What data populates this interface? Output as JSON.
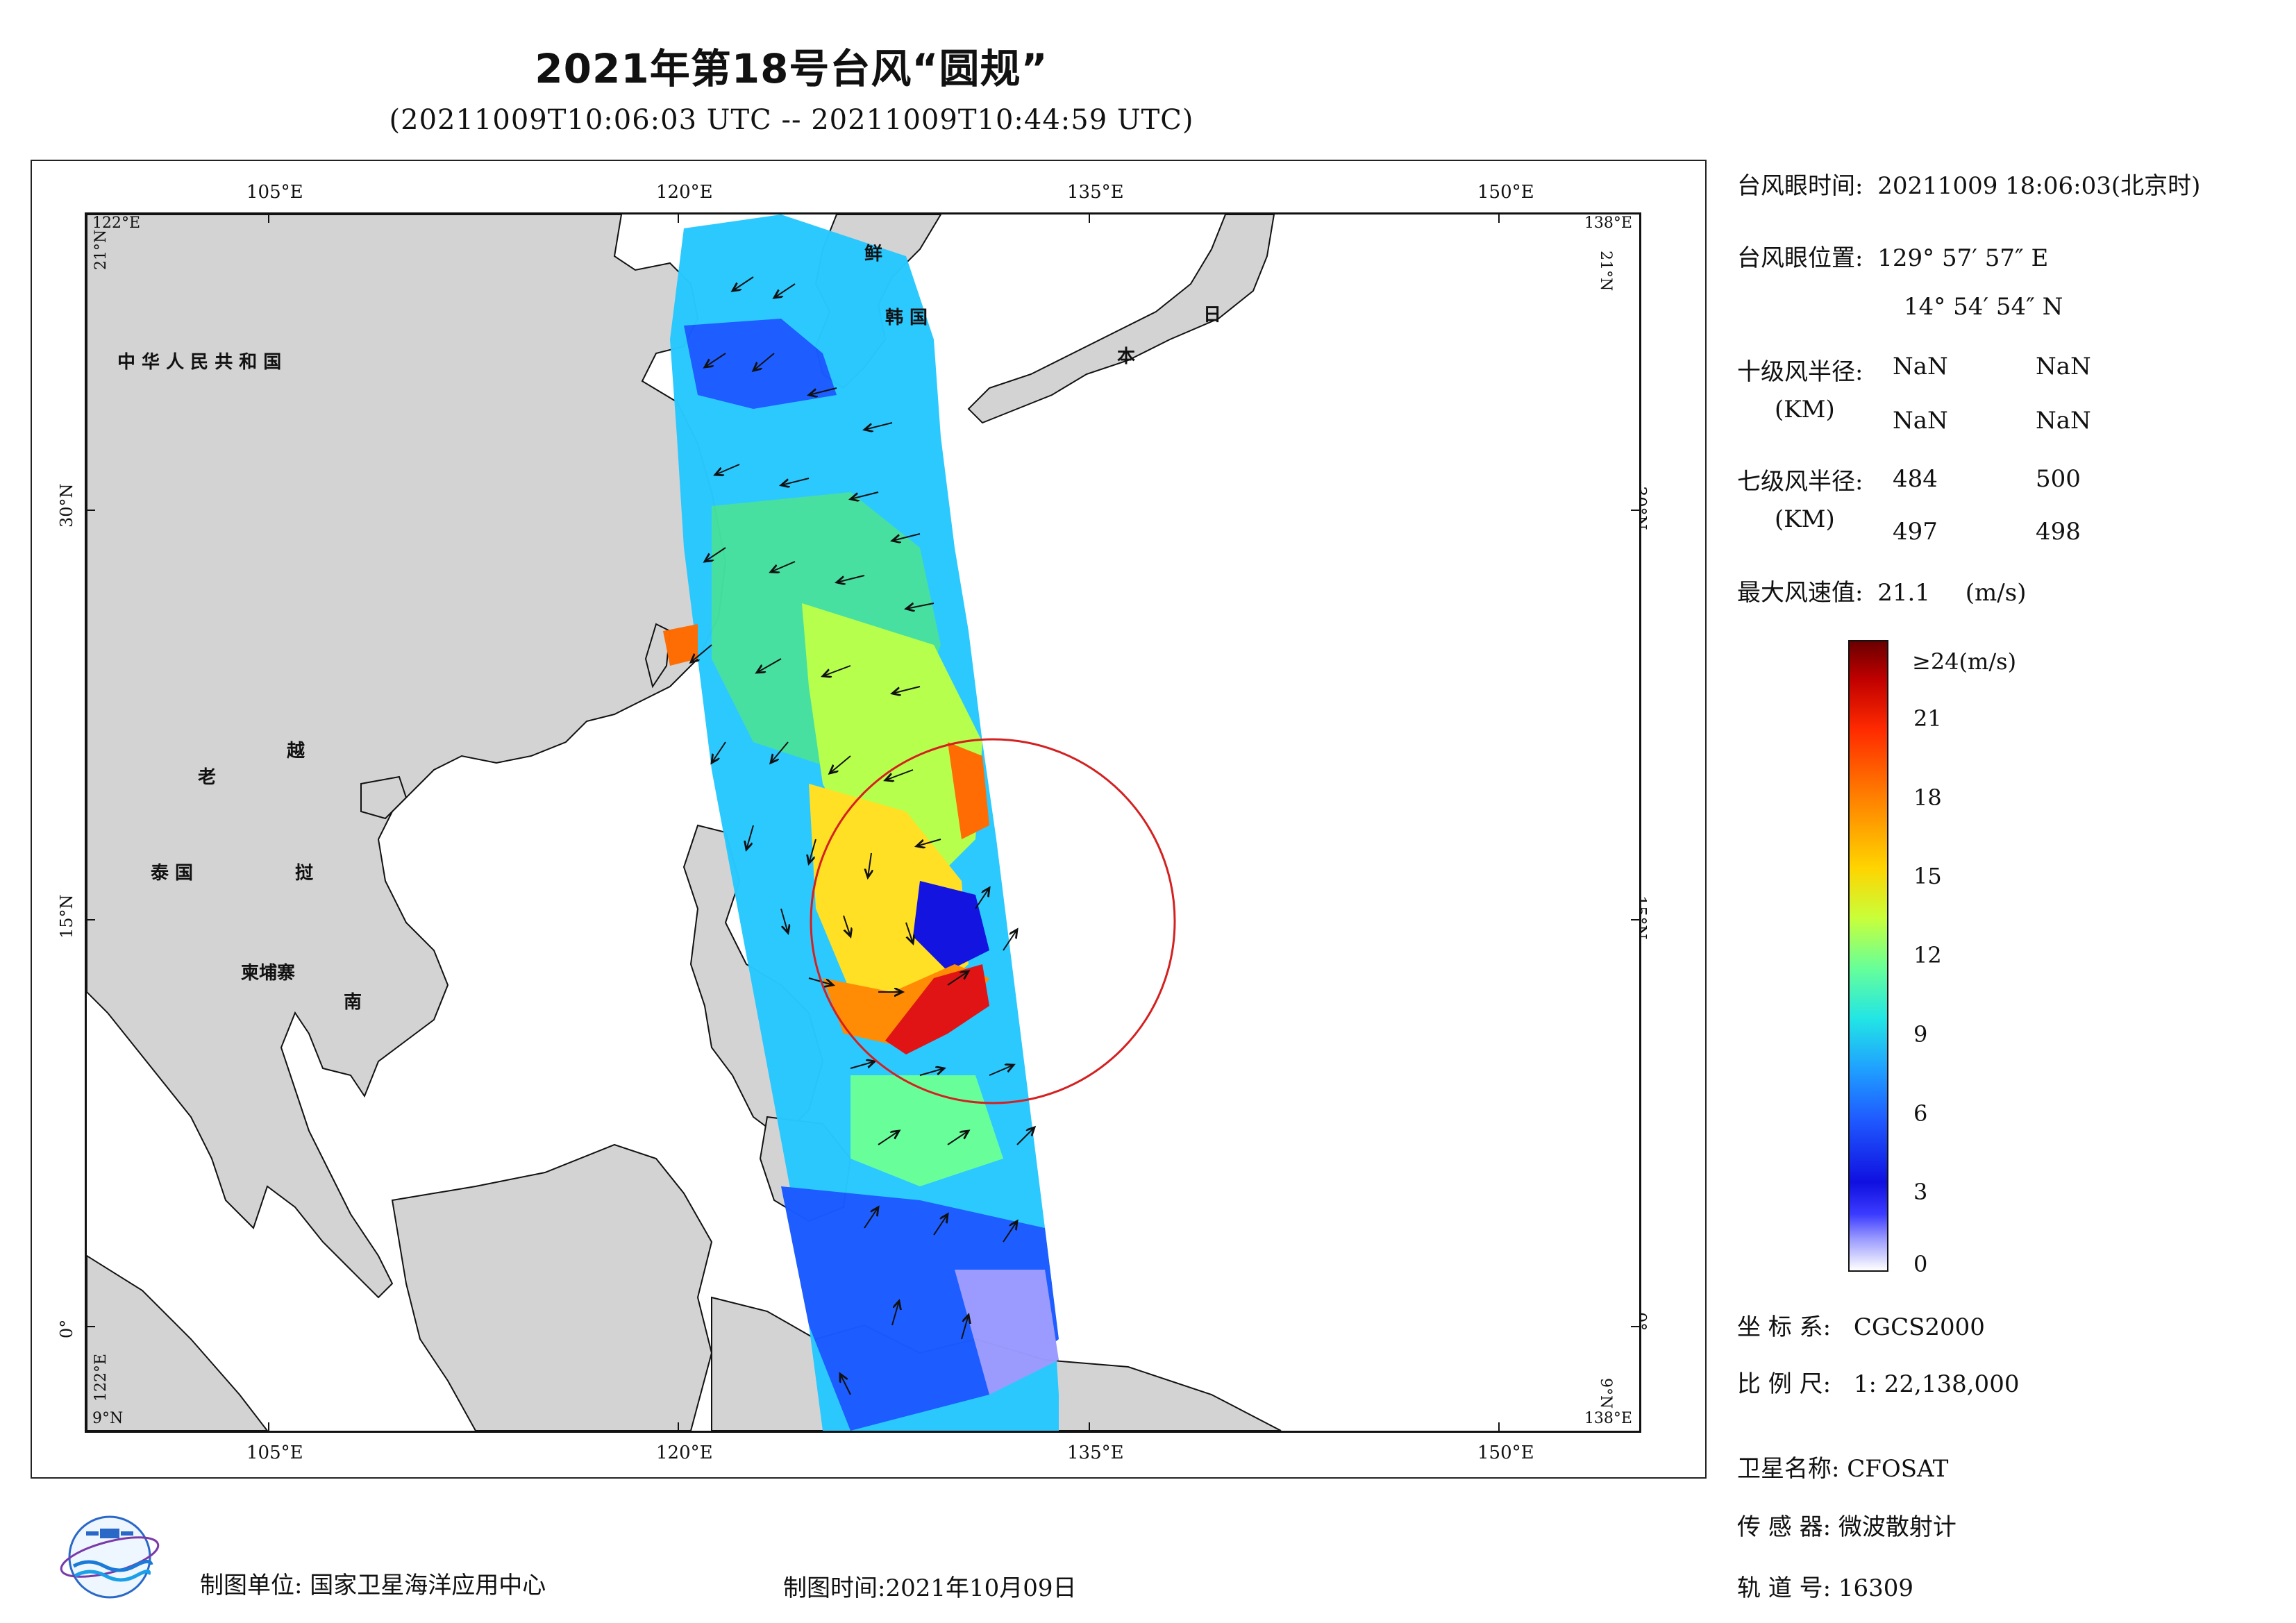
{
  "title": "2021年第18号台风“圆规”",
  "subtitle": "(20211009T10:06:03 UTC -- 20211009T10:44:59 UTC)",
  "map": {
    "top_ticks": [
      "105°E",
      "120°E",
      "135°E",
      "150°E"
    ],
    "bottom_ticks": [
      "105°E",
      "120°E",
      "135°E",
      "150°E"
    ],
    "left_ticks": [
      "30°N",
      "15°N",
      "0°"
    ],
    "right_ticks": [
      "30°N",
      "15°N",
      "0°"
    ],
    "corner_tl_lon": "122°E",
    "corner_tl_lat": "21°N",
    "corner_tr_lon": "138°E",
    "corner_tr_lat": "21°N",
    "corner_bl_lon": "122°E",
    "corner_bl_lat": "9°N",
    "corner_br_lon": "138°E",
    "corner_br_lat": "9°N",
    "country_labels": {
      "china": "中 华 人 民 共 和 国",
      "laos": "老",
      "vietnam_1": "越",
      "vietnam_2": "南",
      "thailand": "泰  国",
      "cambodia": "柬埔寨",
      "thailand_bay": "挝",
      "korea_1": "鲜",
      "korea_2": "韩 国",
      "japan_1": "日",
      "japan_2": "本"
    }
  },
  "info": {
    "eye_time_label": "台风眼时间:",
    "eye_time_value": "20211009 18:06:03(北京时)",
    "eye_pos_label": "台风眼位置:",
    "eye_pos_lon": "129° 57′ 57″ E",
    "eye_pos_lat": "14° 54′ 54″ N",
    "r10_label": "十级风半径:",
    "r10_unit": "(KM)",
    "r10_values": [
      "NaN",
      "NaN",
      "NaN",
      "NaN"
    ],
    "r7_label": "七级风半径:",
    "r7_unit": "(KM)",
    "r7_values": [
      "484",
      "500",
      "497",
      "498"
    ],
    "max_wind_label": "最大风速值:",
    "max_wind_value": "21.1",
    "max_wind_unit": "(m/s)"
  },
  "colorbar": {
    "top_label": "≥24(m/s)",
    "ticks": [
      "21",
      "18",
      "15",
      "12",
      "9",
      "6",
      "3",
      "0"
    ],
    "tick_values": [
      21,
      18,
      15,
      12,
      9,
      6,
      3,
      0
    ],
    "max": 24,
    "colors": [
      "#6a0000",
      "#ff2a00",
      "#ffd400",
      "#66ff99",
      "#1fa0ff",
      "#1010e0",
      "#ffffff"
    ]
  },
  "meta": {
    "crs_label": "坐 标 系:",
    "crs_value": "CGCS2000",
    "scale_label": "比 例 尺:",
    "scale_value": "1: 22,138,000",
    "sat_label": "卫星名称:",
    "sat_value": "CFOSAT",
    "sensor_label": "传 感 器:",
    "sensor_value": "微波散射计",
    "orbit_label": "轨 道 号:",
    "orbit_value": "16309"
  },
  "footer": {
    "producer": "制图单位: 国家卫星海洋应用中心",
    "date": "制图时间:2021年10月09日"
  },
  "colors": {
    "land": "#d3d3d3",
    "circle": "#d42020"
  }
}
